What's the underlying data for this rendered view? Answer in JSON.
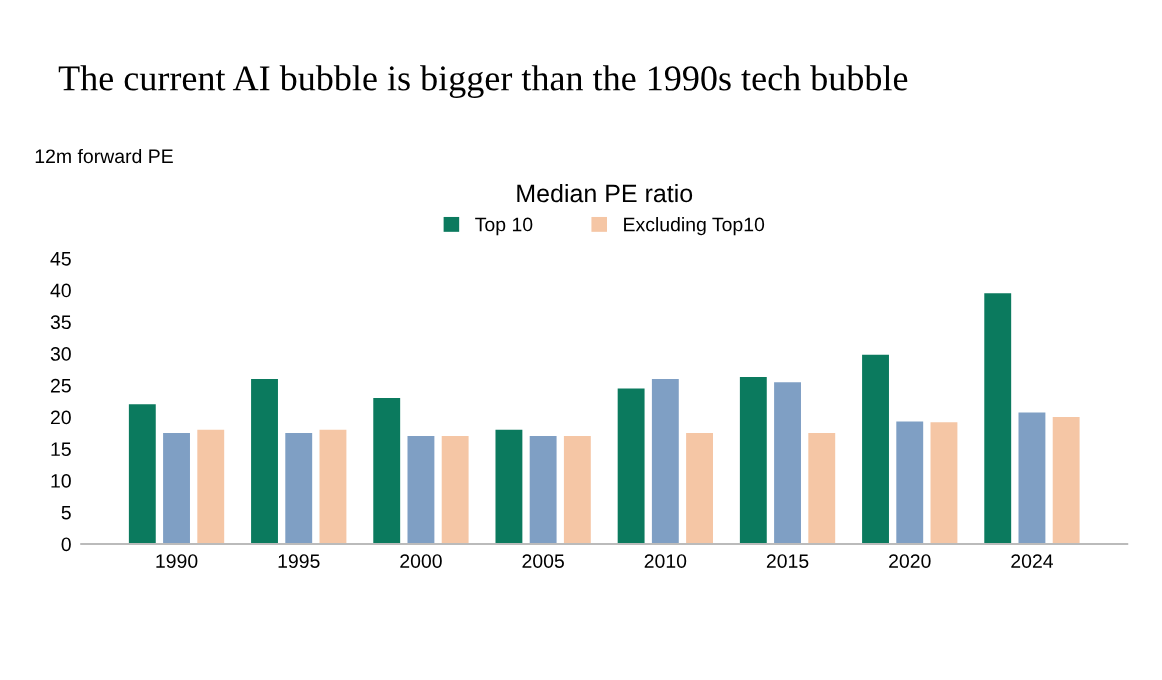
{
  "chart_data": {
    "type": "bar",
    "title": "The current AI bubble is bigger than the 1990s tech bubble",
    "ylabel": "12m forward PE",
    "legend_title": "Median PE ratio",
    "categories": [
      "1990",
      "1995",
      "2000",
      "2005",
      "2010",
      "2015",
      "2020",
      "2024"
    ],
    "series": [
      {
        "name": "Top 10",
        "color": "#0b7a5e",
        "values": [
          22,
          26,
          23,
          18,
          24.5,
          26.3,
          29.8,
          39.5
        ]
      },
      {
        "color": "#7f9fc4",
        "values": [
          17.5,
          17.5,
          17,
          17,
          26,
          25.5,
          19.3,
          20.7
        ]
      },
      {
        "name": "Excluding Top10",
        "color": "#f5c6a5",
        "values": [
          18,
          18,
          17,
          17,
          17.5,
          17.5,
          19.2,
          20
        ]
      }
    ],
    "ylim": [
      0,
      45
    ],
    "yticks": [
      0,
      5,
      10,
      15,
      20,
      25,
      30,
      35,
      40,
      45
    ],
    "grid": false,
    "legend": "top"
  }
}
